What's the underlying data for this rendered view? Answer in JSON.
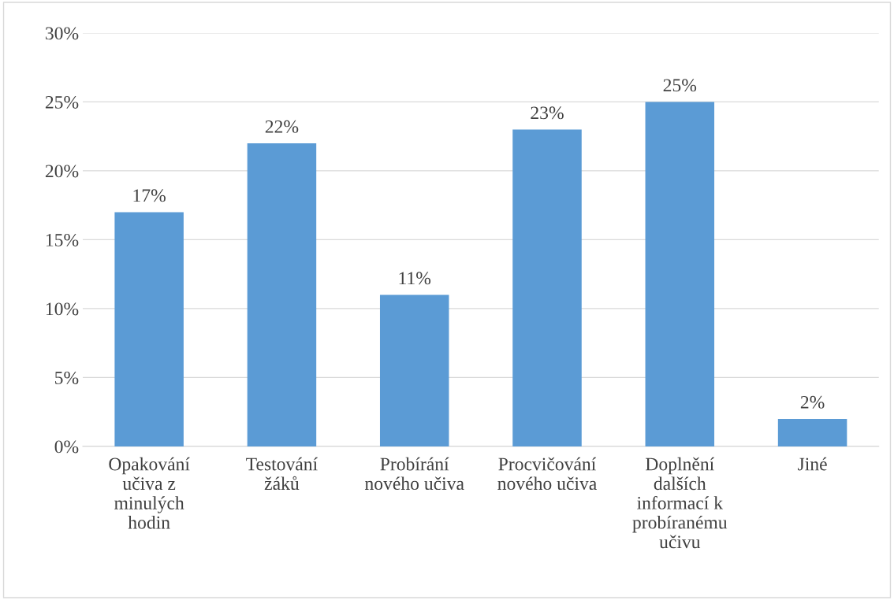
{
  "chart_data": {
    "type": "bar",
    "categories": [
      "Opakování\nučiva z\nminulých\nhodin",
      "Testování\nžáků",
      "Probírání\nnového učiva",
      "Procvičování\nnového učiva",
      "Doplnění\ndalších\ninformací k\nprobíranému\nučivu",
      "Jiné"
    ],
    "values": [
      17,
      22,
      11,
      23,
      25,
      2
    ],
    "value_labels": [
      "17%",
      "22%",
      "11%",
      "23%",
      "25%",
      "2%"
    ],
    "color": "#5b9bd5",
    "ylim": [
      0,
      30
    ],
    "yticks": [
      {
        "value": 0,
        "label": "0%"
      },
      {
        "value": 5,
        "label": "5%"
      },
      {
        "value": 10,
        "label": "10%"
      },
      {
        "value": 15,
        "label": "15%"
      },
      {
        "value": 20,
        "label": "20%"
      },
      {
        "value": 25,
        "label": "25%"
      },
      {
        "value": 30,
        "label": "30%"
      }
    ],
    "grid": "y",
    "legend": false
  }
}
